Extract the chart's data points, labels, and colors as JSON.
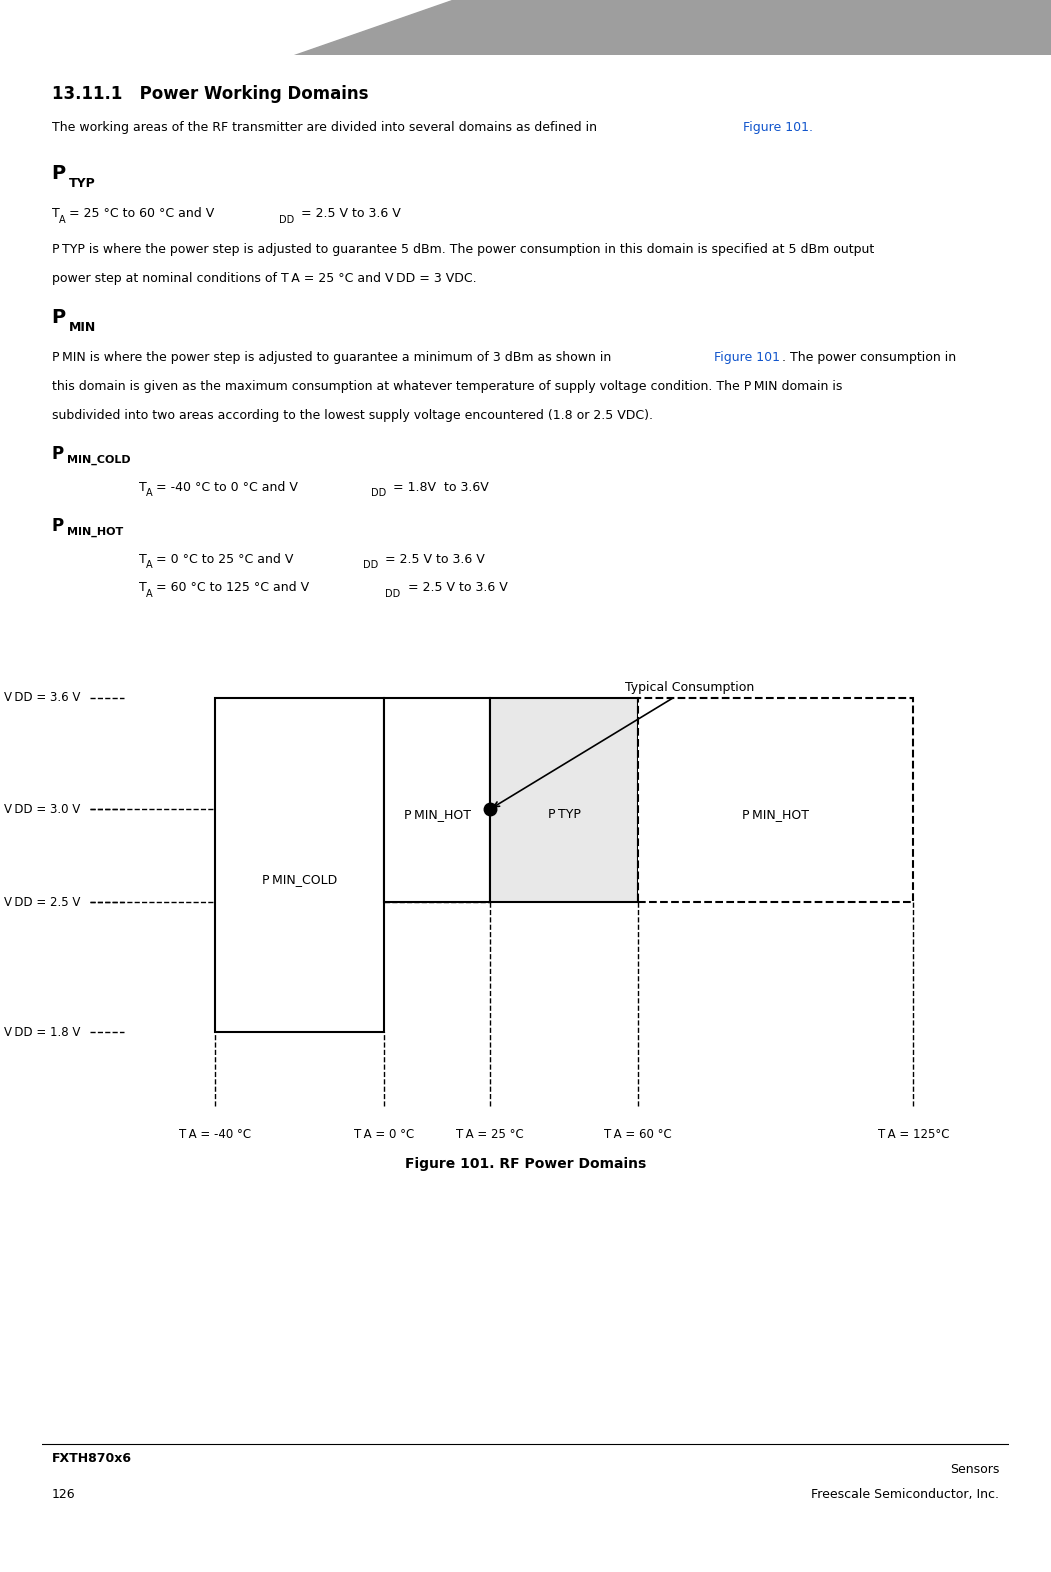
{
  "page_width": 10.51,
  "page_height": 15.72,
  "bg_color": "#ffffff",
  "header_bar_color": "#9e9e9e",
  "title": "13.11.1   Power Working Domains",
  "link_text": "Figure 101",
  "figure_caption": "Figure 101. RF Power Domains",
  "footer_left_top": "FXTH870x6",
  "footer_right_top": "Sensors",
  "footer_left_bottom": "126",
  "footer_right_bottom": "Freescale Semiconductor, Inc.",
  "diagram_vdd_labels": [
    "V DD = 3.6 V",
    "V DD = 3.0 V",
    "V DD = 2.5 V",
    "V DD = 1.8 V"
  ],
  "diagram_ta_labels": [
    "T A = -40 °C",
    "T A = 0 °C",
    "T A = 25 °C",
    "T A = 60 °C",
    "T A = 125°C"
  ],
  "typical_consumption_label": "Typical Consumption",
  "ptyp_fill_color": "#e8e8e8",
  "link_color": "#1155CC"
}
